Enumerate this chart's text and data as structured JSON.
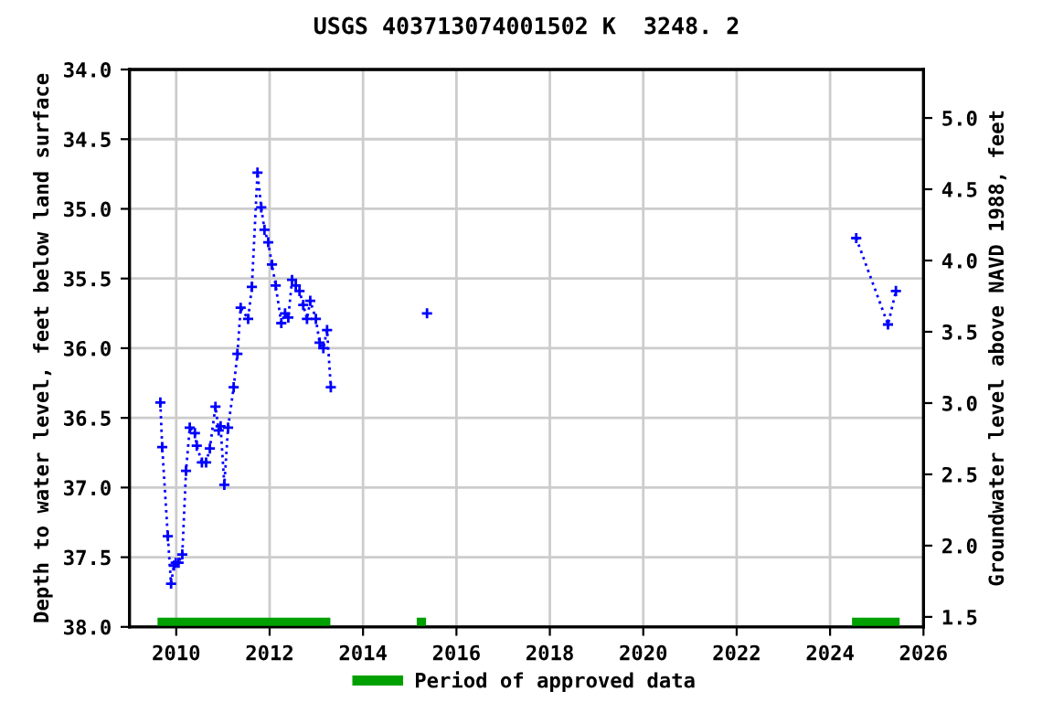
{
  "chart_data": {
    "type": "line",
    "title": "USGS 403713074001502 K  3248. 2",
    "ylabel": "Depth to water level, feet below land surface",
    "y2label": "Groundwater level above NAVD 1988, feet",
    "series": [
      {
        "color": "#0000ff",
        "marker": "cross",
        "line_style": "dotted",
        "x": [
          2009.66,
          2009.7,
          2009.82,
          2009.89,
          2009.95,
          2009.99,
          2010.05,
          2010.13,
          2010.21,
          2010.29,
          2010.4,
          2010.44,
          2010.55,
          2010.64,
          2010.72,
          2010.84,
          2010.91,
          2010.95,
          2011.03,
          2011.11,
          2011.23,
          2011.31,
          2011.38,
          2011.54,
          2011.62,
          2011.74,
          2011.82,
          2011.89,
          2011.97,
          2012.05,
          2012.13,
          2012.25,
          2012.33,
          2012.4,
          2012.48,
          2012.56,
          2012.64,
          2012.72,
          2012.8,
          2012.87,
          2012.99,
          2013.07,
          2013.15,
          2013.23,
          2013.31,
          2014.3,
          2015.37,
          2015.9,
          2024.56,
          2025.24,
          2025.41
        ],
        "values": [
          36.39,
          36.71,
          37.35,
          37.69,
          37.56,
          37.54,
          37.54,
          37.48,
          36.88,
          36.57,
          36.61,
          36.7,
          36.82,
          36.82,
          36.72,
          36.42,
          36.59,
          36.56,
          36.98,
          36.57,
          36.28,
          36.04,
          35.71,
          35.79,
          35.56,
          34.74,
          34.99,
          35.15,
          35.24,
          35.4,
          35.55,
          35.82,
          35.75,
          35.78,
          35.51,
          35.55,
          35.59,
          35.69,
          35.79,
          35.66,
          35.79,
          35.96,
          36.0,
          35.87,
          36.28,
          null,
          35.75,
          null,
          35.21,
          35.83,
          35.59
        ]
      },
      {
        "name": "Period of approved data",
        "color": "#00a000",
        "marker": "none",
        "line_style": "solid",
        "x": [
          2009.6,
          2013.3,
          2014.0,
          2015.15,
          2015.35,
          2016.0,
          2024.47,
          2025.49
        ],
        "values": [
          37.97,
          37.97,
          null,
          37.97,
          37.97,
          null,
          37.97,
          37.97
        ]
      }
    ],
    "xlim": [
      2009,
      2026
    ],
    "xticks": [
      2010,
      2012,
      2014,
      2016,
      2018,
      2020,
      2022,
      2024,
      2026
    ],
    "ylim": [
      38.0,
      34.0
    ],
    "yticks": [
      {
        "value": 34,
        "label": "34.0"
      },
      {
        "value": 34.5,
        "label": "34.5"
      },
      {
        "value": 35,
        "label": "35.0"
      },
      {
        "value": 35.5,
        "label": "35.5"
      },
      {
        "value": 36,
        "label": "36.0"
      },
      {
        "value": 36.5,
        "label": "36.5"
      },
      {
        "value": 37,
        "label": "37.0"
      },
      {
        "value": 37.5,
        "label": "37.5"
      },
      {
        "value": 38,
        "label": "38.0"
      }
    ],
    "y2lim": [
      1.43,
      5.34
    ],
    "y2ticks": [
      1.5,
      {
        "value": 2,
        "label": "2.0"
      },
      2.5,
      {
        "value": 3,
        "label": "3.0"
      },
      3.5,
      {
        "value": 4,
        "label": "4.0"
      },
      4.5,
      {
        "value": 5,
        "label": "5.0"
      }
    ],
    "grid": true,
    "legend": "bottom"
  }
}
